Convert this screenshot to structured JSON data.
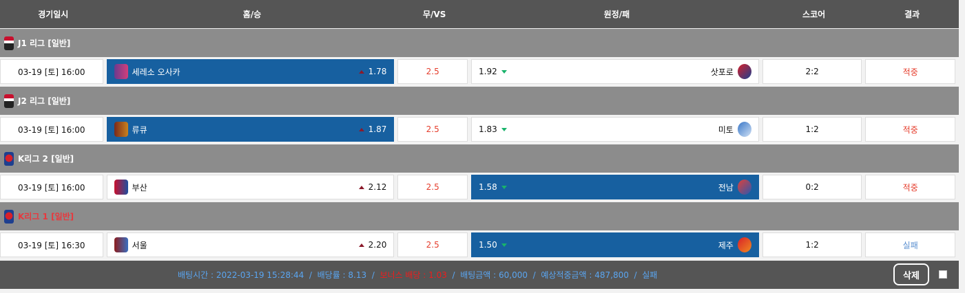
{
  "header": {
    "date": "경기일시",
    "home": "홈/승",
    "draw": "무/VS",
    "away": "원정/패",
    "score": "스코어",
    "result": "결과"
  },
  "leagues": [
    {
      "name": "J1 리그 [일반]",
      "color": "#ffffff",
      "icon": "j-league-icon",
      "match": {
        "date": "03-19 [토] 16:00",
        "home": "세레소 오사카",
        "home_odds": "1.78",
        "draw": "2.5",
        "away_odds": "1.92",
        "away": "삿포로",
        "score": "2:2",
        "result": "적중",
        "selected": "home"
      }
    },
    {
      "name": "J2 리그 [일반]",
      "color": "#ffffff",
      "icon": "j-league-icon",
      "match": {
        "date": "03-19 [토] 16:00",
        "home": "류큐",
        "home_odds": "1.87",
        "draw": "2.5",
        "away_odds": "1.83",
        "away": "미토",
        "score": "1:2",
        "result": "적중",
        "selected": "home"
      }
    },
    {
      "name": "K리그 2 [일반]",
      "color": "#ffffff",
      "icon": "k-league-icon",
      "match": {
        "date": "03-19 [토] 16:00",
        "home": "부산",
        "home_odds": "2.12",
        "draw": "2.5",
        "away_odds": "1.58",
        "away": "전남",
        "score": "0:2",
        "result": "적중",
        "selected": "away"
      }
    },
    {
      "name": "K리그 1 [일반]",
      "color": "#e8383d",
      "icon": "k-league-icon",
      "match": {
        "date": "03-19 [토] 16:30",
        "home": "서울",
        "home_odds": "2.20",
        "draw": "2.5",
        "away_odds": "1.50",
        "away": "제주",
        "score": "1:2",
        "result": "실패",
        "selected": "away"
      }
    }
  ],
  "footer": {
    "bet_time": "배팅시간 : 2022-03-19 15:28:44",
    "sep": "/",
    "rate": "배당률 : 8.13",
    "bonus": "보너스 배당 : 1.03",
    "amount": "배팅금액 : 60,000",
    "expected": "예상적중금액 : 487,800",
    "status": "실패",
    "delete": "삭제"
  },
  "colors": {
    "selected": "#1760a0",
    "win": "#e53c2b",
    "lose": "#5a8fd0",
    "odds_up": "#8b1a2b",
    "odds_down": "#19b36b"
  }
}
